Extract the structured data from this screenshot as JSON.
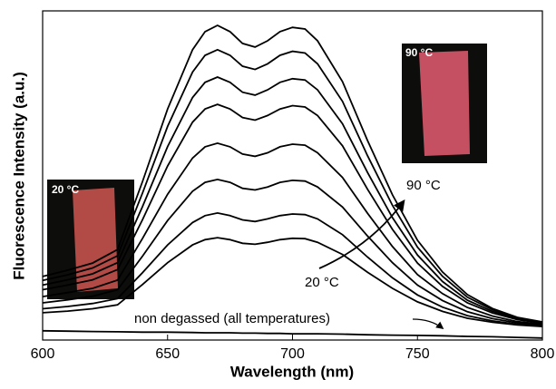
{
  "chart_data": {
    "type": "line",
    "x_label": "Wavelength (nm)",
    "y_label": "Fluorescence Intensity (a.u.)",
    "x": [
      600,
      610,
      620,
      630,
      640,
      650,
      660,
      665,
      670,
      675,
      680,
      685,
      690,
      695,
      700,
      705,
      710,
      720,
      730,
      740,
      750,
      760,
      770,
      780,
      790,
      800
    ],
    "xlim": [
      600,
      800
    ],
    "xticks": [
      600,
      650,
      700,
      750,
      800
    ],
    "ylim": [
      0,
      100
    ],
    "series": [
      {
        "color": "#000000",
        "values": [
          19.3,
          21.2,
          23.4,
          27.5,
          48.2,
          70.2,
          88.2,
          93.7,
          95.6,
          93.7,
          90.1,
          89.0,
          90.9,
          93.7,
          95.0,
          94.5,
          90.9,
          78.5,
          60.6,
          44.1,
          30.3,
          20.7,
          13.8,
          9.6,
          6.9,
          5.5
        ]
      },
      {
        "color": "#000000",
        "values": [
          18.1,
          19.8,
          21.9,
          25.6,
          44.7,
          64.9,
          81.4,
          86.5,
          88.2,
          86.5,
          83.2,
          82.2,
          83.9,
          86.5,
          87.7,
          87.2,
          83.9,
          72.5,
          56.0,
          40.9,
          28.2,
          19.4,
          13.0,
          9.2,
          6.7,
          5.4
        ]
      },
      {
        "color": "#000000",
        "values": [
          16.7,
          18.3,
          20.1,
          23.5,
          40.6,
          58.8,
          73.7,
          78.3,
          79.9,
          78.3,
          75.3,
          74.4,
          76.0,
          78.3,
          79.4,
          79.0,
          76.0,
          65.7,
          50.9,
          37.2,
          25.8,
          17.8,
          12.1,
          8.7,
          6.4,
          5.3
        ]
      },
      {
        "color": "#000000",
        "values": [
          15.3,
          16.7,
          18.3,
          21.4,
          36.6,
          52.9,
          66.2,
          70.2,
          71.6,
          70.2,
          67.6,
          66.8,
          68.2,
          70.2,
          71.2,
          70.8,
          68.2,
          59.0,
          45.8,
          33.6,
          23.4,
          16.3,
          11.3,
          8.2,
          6.2,
          5.1
        ]
      },
      {
        "color": "#000000",
        "values": [
          13.2,
          14.4,
          15.7,
          18.2,
          30.9,
          44.3,
          55.3,
          58.7,
          59.8,
          58.7,
          56.5,
          55.8,
          56.9,
          58.7,
          59.5,
          59.2,
          56.9,
          49.4,
          38.5,
          28.4,
          19.9,
          14.1,
          9.9,
          7.3,
          5.6,
          4.8
        ]
      },
      {
        "color": "#000000",
        "values": [
          11.3,
          12.2,
          13.3,
          15.3,
          25.5,
          36.3,
          45.2,
          47.9,
          48.8,
          47.9,
          46.1,
          45.6,
          46.5,
          47.9,
          48.5,
          48.3,
          46.5,
          40.4,
          31.6,
          23.5,
          16.7,
          12.0,
          8.6,
          6.5,
          5.2,
          4.5
        ]
      },
      {
        "color": "#000000",
        "values": [
          9.5,
          10.2,
          11.1,
          12.6,
          20.5,
          28.9,
          35.7,
          37.8,
          38.6,
          37.8,
          36.5,
          36.0,
          36.8,
          37.8,
          38.3,
          38.1,
          36.8,
          32.0,
          25.2,
          18.9,
          13.7,
          10.0,
          7.4,
          5.8,
          4.8,
          4.2
        ]
      },
      {
        "color": "#000000",
        "values": [
          8.3,
          8.8,
          9.5,
          10.7,
          16.9,
          23.5,
          28.9,
          30.5,
          31.1,
          30.5,
          29.4,
          29.1,
          29.7,
          30.5,
          30.9,
          30.8,
          29.7,
          26.0,
          20.6,
          15.7,
          11.6,
          8.7,
          6.6,
          5.4,
          4.6,
          4.1
        ]
      },
      {
        "color": "#000000",
        "values": [
          2.8,
          2.7,
          2.6,
          2.5,
          2.4,
          2.4,
          2.3,
          2.2,
          2.2,
          2.2,
          2.1,
          2.1,
          2.0,
          2.0,
          1.9,
          1.9,
          1.9,
          1.8,
          1.6,
          1.5,
          1.4,
          1.3,
          1.1,
          1.0,
          0.8,
          0.6
        ]
      }
    ],
    "annotations": [
      "90 °C",
      "20 °C",
      "non degassed (all temperatures)",
      "20 °C",
      "90 °C"
    ]
  }
}
